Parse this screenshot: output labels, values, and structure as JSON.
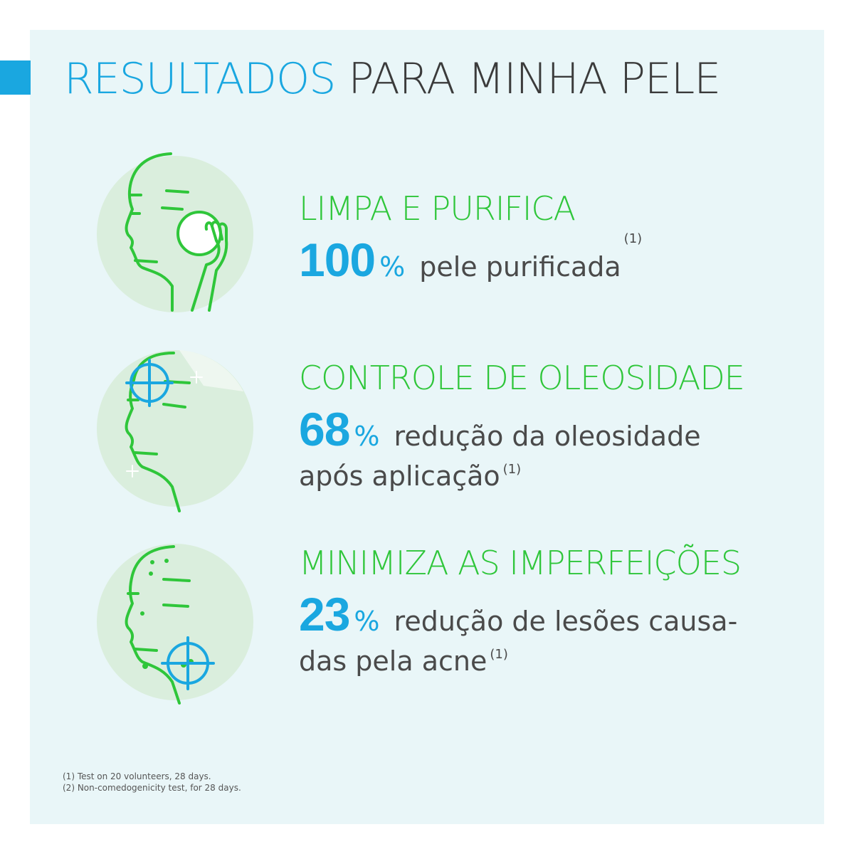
{
  "title": {
    "highlight": "RESULTADOS",
    "rest": "PARA MINHA PELE"
  },
  "colors": {
    "accent_blue": "#1aa7e0",
    "accent_green": "#2fc63a",
    "panel": "#e9f6f8",
    "text": "#4a4a4a"
  },
  "benefits": [
    {
      "heading": "LIMPA E PURIFICA",
      "number": "100",
      "percent": "%",
      "line1": "pele purificada",
      "line1_ref": "(1)",
      "line2": "",
      "line2_ref": "",
      "icon": "face-cleansing-pad-icon"
    },
    {
      "heading": "CONTROLE DE OLEOSIDADE",
      "number": "68",
      "percent": "%",
      "line1": "redução da oleosidade",
      "line1_ref": "",
      "line2": "após aplicação",
      "line2_ref": "(1)",
      "icon": "face-oil-target-icon"
    },
    {
      "heading": "MINIMIZA AS IMPERFEIÇÕES",
      "number": "23",
      "percent": "%",
      "line1": "redução de lesões causa-",
      "line1_ref": "",
      "line2": "das pela acne",
      "line2_ref": "(1)",
      "icon": "face-blemish-target-icon"
    }
  ],
  "footnotes": [
    {
      "ref": "(1)",
      "text": "Test on 20 volunteers, 28 days."
    },
    {
      "ref": "(2)",
      "text": "Non-comedogenicity test, for 28 days."
    }
  ]
}
